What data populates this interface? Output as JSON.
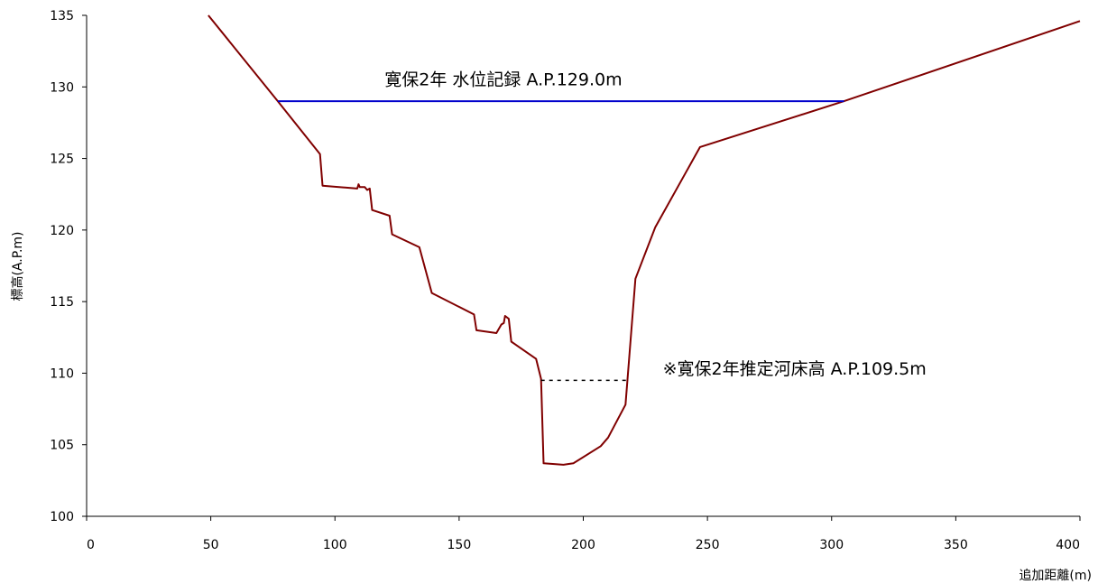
{
  "chart_data": {
    "type": "line",
    "title": "",
    "xlabel": "追加距離(m)",
    "ylabel": "標高(A.P.m)",
    "xlim": [
      0,
      400
    ],
    "ylim": [
      100,
      135
    ],
    "x_ticks": [
      "0",
      "50",
      "100",
      "150",
      "200",
      "250",
      "300",
      "350",
      "400"
    ],
    "y_ticks": [
      "100",
      "105",
      "110",
      "115",
      "120",
      "125",
      "130",
      "135"
    ],
    "grid": false,
    "legend": "none",
    "series": [
      {
        "color": "#800000",
        "points": [
          [
            49,
            135.0
          ],
          [
            77,
            129.0
          ],
          [
            94,
            125.3
          ],
          [
            95,
            123.1
          ],
          [
            109,
            122.9
          ],
          [
            109.5,
            123.2
          ],
          [
            110,
            123.0
          ],
          [
            112,
            123.0
          ],
          [
            113,
            122.8
          ],
          [
            114,
            122.9
          ],
          [
            115,
            121.4
          ],
          [
            122,
            121.0
          ],
          [
            123,
            119.7
          ],
          [
            134,
            118.8
          ],
          [
            139,
            115.6
          ],
          [
            156,
            114.1
          ],
          [
            157,
            113.0
          ],
          [
            165,
            112.8
          ],
          [
            167,
            113.4
          ],
          [
            168,
            113.5
          ],
          [
            168.5,
            114.0
          ],
          [
            170,
            113.8
          ],
          [
            171,
            112.2
          ],
          [
            181,
            111.0
          ],
          [
            183,
            109.6
          ],
          [
            184,
            103.7
          ],
          [
            192,
            103.6
          ],
          [
            196,
            103.7
          ],
          [
            207,
            104.9
          ],
          [
            210,
            105.5
          ],
          [
            217,
            107.8
          ],
          [
            221,
            116.6
          ],
          [
            229,
            120.2
          ],
          [
            247,
            125.8
          ],
          [
            305,
            129.0
          ],
          [
            400,
            134.6
          ]
        ]
      },
      {
        "color": "#0000cc",
        "points": [
          [
            77,
            129.0
          ],
          [
            305,
            129.0
          ]
        ]
      },
      {
        "color": "#000000",
        "dashed": true,
        "points": [
          [
            183,
            109.5
          ],
          [
            218,
            109.5
          ]
        ]
      }
    ],
    "annotations": [
      {
        "text": "寛保2年  水位記録  A.P.129.0m",
        "x": 120,
        "y": 130.1
      },
      {
        "text": "※寛保2年推定河床高  A.P.109.5m",
        "x": 232,
        "y": 109.9
      }
    ]
  }
}
